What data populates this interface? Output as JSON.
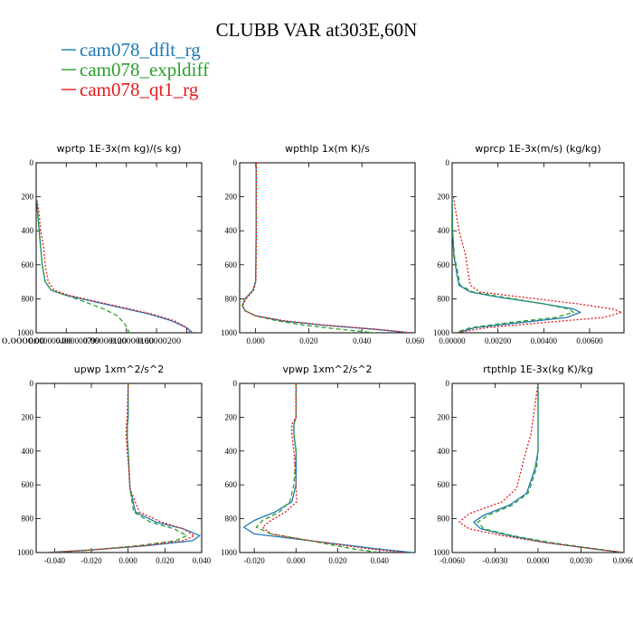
{
  "figure": {
    "title": "CLUBB VAR at303E,60N",
    "legend": [
      {
        "label": "cam078_dflt_rg",
        "color": "#1f78b4",
        "dash": "solid"
      },
      {
        "label": "cam078_expldiff",
        "color": "#2ca02c",
        "dash": "dashed"
      },
      {
        "label": "cam078_qt1_rg",
        "color": "#e31a1c",
        "dash": "dotted"
      }
    ]
  },
  "chart_data": [
    {
      "type": "line",
      "title": "wprtp   1E-3x(m kg)/(s kg)",
      "xlim": [
        0,
        1.1e-08
      ],
      "ylim": [
        1000,
        0
      ],
      "xticks": [
        0,
        2e-09,
        4e-09,
        6e-09,
        8e-09,
        1e-08
      ],
      "xtick_labels": [
        "0.000000",
        "0.000000400",
        "0.000000799",
        "0.00000120",
        "0.00000160",
        "0.00000200"
      ],
      "xtick_label_pos": [
        0,
        1.6e-09,
        3.2e-09,
        4.8e-09,
        6.4e-09,
        8e-09
      ],
      "yticks": [
        0,
        200,
        400,
        600,
        800,
        1000
      ],
      "series": [
        {
          "name": "cam078_dflt_rg",
          "x": [
            5e-11,
            1e-10,
            2e-10,
            3e-10,
            4e-10,
            6e-10,
            1e-09,
            2e-09,
            3.5e-09,
            5.5e-09,
            7.5e-09,
            9e-09,
            1e-08,
            1.04e-08
          ],
          "y": [
            220,
            300,
            400,
            500,
            600,
            700,
            750,
            780,
            810,
            850,
            890,
            930,
            970,
            1000
          ]
        },
        {
          "name": "cam078_expldiff",
          "x": [
            5e-11,
            1e-10,
            2e-10,
            3e-10,
            4e-10,
            6e-10,
            1e-09,
            2e-09,
            3.3e-09,
            4.5e-09,
            5.4e-09,
            5.9e-09,
            6.2e-09
          ],
          "y": [
            220,
            300,
            400,
            500,
            600,
            700,
            750,
            780,
            820,
            860,
            900,
            950,
            1000
          ]
        },
        {
          "name": "cam078_qt1_rg",
          "x": [
            5e-11,
            2e-10,
            3e-10,
            5e-10,
            6e-10,
            8e-10,
            1.2e-09,
            2.2e-09,
            3.7e-09,
            5.7e-09,
            7.7e-09,
            9.2e-09,
            1e-08,
            1.02e-08
          ],
          "y": [
            220,
            300,
            400,
            500,
            600,
            700,
            750,
            780,
            810,
            850,
            890,
            930,
            970,
            1000
          ]
        }
      ]
    },
    {
      "type": "line",
      "title": "wpthlp   1x(m K)/s",
      "xlim": [
        -0.006,
        0.06
      ],
      "ylim": [
        1000,
        0
      ],
      "xticks": [
        0,
        0.02,
        0.04,
        0.06
      ],
      "xtick_labels": [
        "0.000",
        "0.020",
        "0.040",
        "0.060"
      ],
      "yticks": [
        0,
        200,
        400,
        600,
        800,
        1000
      ],
      "series": [
        {
          "name": "cam078_dflt_rg",
          "x": [
            0.0002,
            0.0002,
            0.0002,
            0.0001,
            0,
            -0.001,
            -0.004,
            -0.005,
            -0.004,
            0.0,
            0.01,
            0.025,
            0.045,
            0.058
          ],
          "y": [
            0,
            200,
            400,
            600,
            700,
            750,
            800,
            840,
            870,
            900,
            930,
            955,
            980,
            1000
          ]
        },
        {
          "name": "cam078_expldiff",
          "x": [
            0.0002,
            0.0002,
            0.0002,
            0.0001,
            0,
            -0.001,
            -0.004,
            -0.005,
            -0.004,
            0.0,
            0.008,
            0.018,
            0.032,
            0.045
          ],
          "y": [
            0,
            200,
            400,
            600,
            700,
            750,
            800,
            840,
            870,
            900,
            930,
            955,
            980,
            1000
          ]
        },
        {
          "name": "cam078_qt1_rg",
          "x": [
            0.0003,
            0.0003,
            0.0003,
            0.0002,
            0.0001,
            -0.0008,
            -0.0035,
            -0.0048,
            -0.004,
            0.0,
            0.011,
            0.026,
            0.046,
            0.059
          ],
          "y": [
            0,
            200,
            400,
            600,
            700,
            750,
            800,
            840,
            870,
            900,
            930,
            955,
            980,
            1000
          ]
        }
      ]
    },
    {
      "type": "line",
      "title": "wprcp   1E-3x(m/s) (kg/kg)",
      "xlim": [
        0,
        0.0075
      ],
      "ylim": [
        1000,
        0
      ],
      "xticks": [
        0,
        0.002,
        0.004,
        0.006
      ],
      "xtick_labels": [
        "0.00000",
        "0.00200",
        "0.00400",
        "0.00600"
      ],
      "yticks": [
        0,
        200,
        400,
        600,
        800,
        1000
      ],
      "series": [
        {
          "name": "cam078_dflt_rg",
          "x": [
            0,
            2e-05,
            8e-05,
            0.0002,
            0.0003,
            0.0008,
            0.002,
            0.004,
            0.0053,
            0.0056,
            0.005,
            0.003,
            0.001,
            0.0002
          ],
          "y": [
            200,
            400,
            550,
            650,
            720,
            760,
            790,
            830,
            860,
            880,
            910,
            940,
            970,
            1000
          ]
        },
        {
          "name": "cam078_expldiff",
          "x": [
            0,
            2e-05,
            0.0001,
            0.00025,
            0.00035,
            0.0009,
            0.0022,
            0.004,
            0.0051,
            0.0053,
            0.0045,
            0.0025,
            0.0008,
            0.0001
          ],
          "y": [
            200,
            400,
            550,
            650,
            720,
            760,
            790,
            830,
            860,
            880,
            910,
            940,
            970,
            1000
          ]
        },
        {
          "name": "cam078_qt1_rg",
          "x": [
            5e-05,
            0.0003,
            0.0006,
            0.0007,
            0.0008,
            0.0012,
            0.003,
            0.0055,
            0.007,
            0.0074,
            0.0066,
            0.004,
            0.0015,
            0.0002
          ],
          "y": [
            200,
            400,
            550,
            650,
            720,
            760,
            790,
            830,
            860,
            880,
            910,
            940,
            970,
            1000
          ]
        }
      ]
    },
    {
      "type": "line",
      "title": "upwp   1xm^2/s^2",
      "xlim": [
        -0.05,
        0.04
      ],
      "ylim": [
        1000,
        0
      ],
      "xticks": [
        -0.04,
        -0.02,
        0,
        0.02,
        0.04
      ],
      "xtick_labels": [
        "-0.040",
        "-0.020",
        "0.000",
        "0.020",
        "0.040"
      ],
      "yticks": [
        0,
        200,
        400,
        600,
        800,
        1000
      ],
      "series": [
        {
          "name": "cam078_dflt_rg",
          "x": [
            0,
            0,
            -0.0005,
            -0.0005,
            0,
            0.0005,
            0.001,
            0.004,
            0.015,
            0.03,
            0.039,
            0.035,
            0.01,
            -0.02,
            -0.045
          ],
          "y": [
            0,
            200,
            260,
            320,
            400,
            500,
            620,
            760,
            820,
            860,
            900,
            930,
            960,
            985,
            1000
          ]
        },
        {
          "name": "cam078_expldiff",
          "x": [
            0,
            0,
            -0.0005,
            -0.0005,
            0,
            0.0005,
            0.001,
            0.003,
            0.012,
            0.025,
            0.032,
            0.026,
            0.005,
            -0.02,
            -0.042
          ],
          "y": [
            0,
            200,
            260,
            320,
            400,
            500,
            620,
            760,
            820,
            860,
            900,
            930,
            960,
            985,
            1000
          ]
        },
        {
          "name": "cam078_qt1_rg",
          "x": [
            0,
            -0.0005,
            -0.001,
            -0.001,
            -0.0005,
            0.0003,
            0.001,
            0.006,
            0.018,
            0.03,
            0.036,
            0.03,
            0.008,
            -0.02,
            -0.044
          ],
          "y": [
            0,
            200,
            260,
            320,
            400,
            500,
            620,
            760,
            820,
            860,
            900,
            930,
            960,
            985,
            1000
          ]
        }
      ]
    },
    {
      "type": "line",
      "title": "vpwp   1xm^2/s^2",
      "xlim": [
        -0.027,
        0.057
      ],
      "ylim": [
        1000,
        0
      ],
      "xticks": [
        -0.02,
        0,
        0.02,
        0.04
      ],
      "xtick_labels": [
        "-0.020",
        "0.000",
        "0.020",
        "0.040"
      ],
      "yticks": [
        0,
        200,
        400,
        600,
        800,
        1000
      ],
      "series": [
        {
          "name": "cam078_dflt_rg",
          "x": [
            0,
            0,
            -0.001,
            -0.001,
            0,
            0,
            -0.002,
            -0.01,
            -0.02,
            -0.025,
            -0.02,
            0,
            0.02,
            0.04,
            0.056
          ],
          "y": [
            0,
            200,
            240,
            300,
            400,
            600,
            700,
            760,
            810,
            850,
            890,
            920,
            950,
            980,
            1000
          ]
        },
        {
          "name": "cam078_expldiff",
          "x": [
            0,
            0,
            -0.001,
            -0.001,
            0,
            -0.001,
            -0.003,
            -0.008,
            -0.016,
            -0.019,
            -0.012,
            0.002,
            0.015,
            0.028,
            0.04
          ],
          "y": [
            0,
            200,
            240,
            300,
            400,
            600,
            700,
            760,
            810,
            850,
            890,
            920,
            950,
            980,
            1000
          ]
        },
        {
          "name": "cam078_qt1_rg",
          "x": [
            0,
            0,
            -0.002,
            -0.002,
            -0.001,
            0,
            0.0003,
            -0.005,
            -0.012,
            -0.016,
            -0.012,
            0.002,
            0.018,
            0.036,
            0.052
          ],
          "y": [
            0,
            200,
            240,
            300,
            400,
            600,
            700,
            760,
            810,
            850,
            890,
            920,
            950,
            980,
            1000
          ]
        }
      ]
    },
    {
      "type": "line",
      "title": "rtpthlp   1E-3x(kg K)/kg",
      "xlim": [
        -0.006,
        0.006
      ],
      "ylim": [
        1000,
        0
      ],
      "xticks": [
        -0.006,
        -0.003,
        0,
        0.003,
        0.006
      ],
      "xtick_labels": [
        "-0.0060",
        "-0.0030",
        "0.0000",
        "0.0030",
        "0.0060"
      ],
      "yticks": [
        0,
        200,
        400,
        600,
        800,
        1000
      ],
      "series": [
        {
          "name": "cam078_dflt_rg",
          "x": [
            0,
            0,
            -0.0002,
            -0.0004,
            -0.0008,
            -0.002,
            -0.0038,
            -0.0045,
            -0.004,
            -0.002,
            0.0005,
            0.004,
            0.006
          ],
          "y": [
            0,
            400,
            500,
            550,
            650,
            720,
            780,
            820,
            860,
            900,
            940,
            980,
            1000
          ]
        },
        {
          "name": "cam078_expldiff",
          "x": [
            0,
            0,
            -0.0001,
            -0.0003,
            -0.0007,
            -0.0018,
            -0.0035,
            -0.0042,
            -0.0038,
            -0.0018,
            0.0008,
            0.0042,
            0.006
          ],
          "y": [
            0,
            400,
            500,
            550,
            650,
            720,
            780,
            820,
            860,
            900,
            940,
            980,
            1000
          ]
        },
        {
          "name": "cam078_qt1_rg",
          "x": [
            0,
            -0.0005,
            -0.001,
            -0.0012,
            -0.0015,
            -0.0025,
            -0.0048,
            -0.0055,
            -0.0048,
            -0.0025,
            0.0004,
            0.004,
            0.006
          ],
          "y": [
            0,
            300,
            450,
            520,
            620,
            700,
            770,
            820,
            860,
            900,
            940,
            980,
            1000
          ]
        }
      ]
    }
  ]
}
